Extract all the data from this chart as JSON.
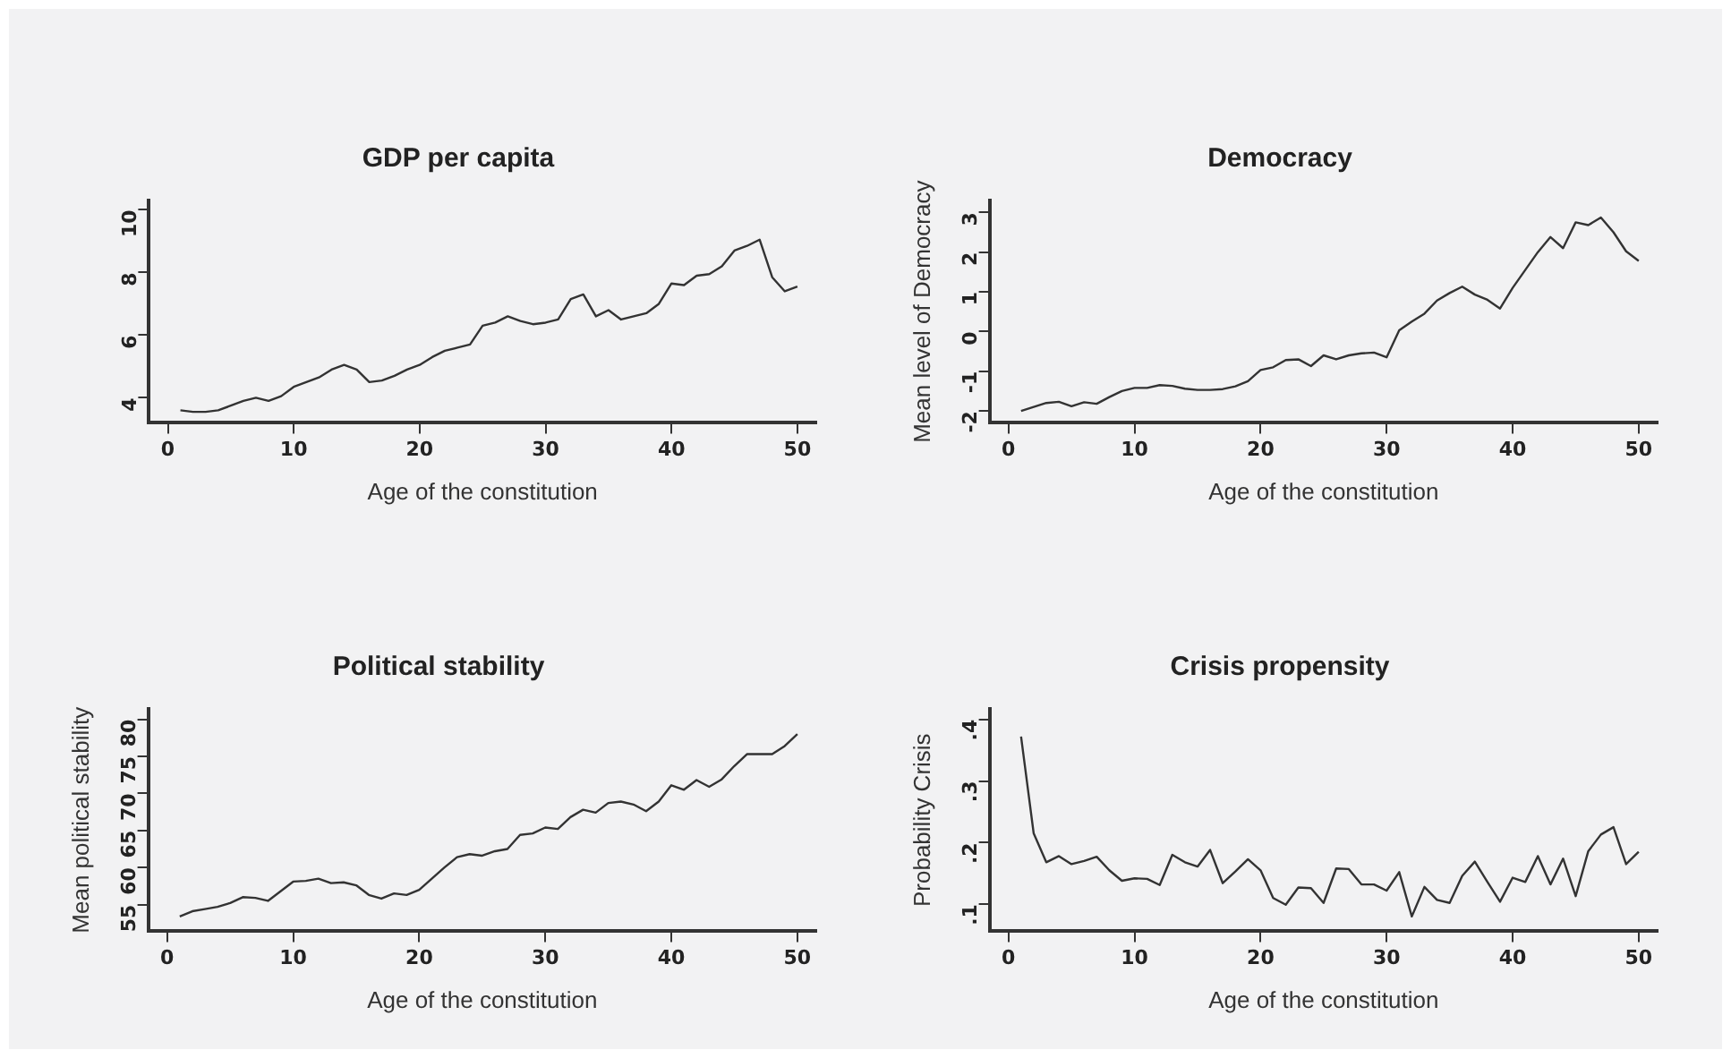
{
  "chart_data": [
    {
      "type": "line",
      "title": "GDP per capita",
      "xlabel": "Age of the constitution",
      "x": [
        1,
        2,
        3,
        4,
        5,
        6,
        7,
        8,
        9,
        10,
        11,
        12,
        13,
        14,
        15,
        16,
        17,
        18,
        19,
        20,
        21,
        22,
        23,
        24,
        25,
        26,
        27,
        28,
        29,
        30,
        31,
        32,
        33,
        34,
        35,
        36,
        37,
        38,
        39,
        40,
        41,
        42,
        43,
        44,
        45,
        46,
        47,
        48,
        49,
        50
      ],
      "series": [
        {
          "color": "#333333",
          "values": [
            3.6,
            3.55,
            3.55,
            3.6,
            3.75,
            3.9,
            4.0,
            3.9,
            4.05,
            4.35,
            4.5,
            4.65,
            4.9,
            5.05,
            4.9,
            4.5,
            4.55,
            4.7,
            4.9,
            5.05,
            5.3,
            5.5,
            5.6,
            5.7,
            6.3,
            6.4,
            6.6,
            6.45,
            6.35,
            6.4,
            6.5,
            7.15,
            7.3,
            6.6,
            6.8,
            6.5,
            6.6,
            6.7,
            7.0,
            7.65,
            7.6,
            7.9,
            7.95,
            8.2,
            8.7,
            8.85,
            9.05,
            7.85,
            7.4,
            7.55
          ]
        }
      ],
      "xlim": [
        -1.5,
        51.5
      ],
      "xticks": [
        0,
        10,
        20,
        30,
        40,
        50
      ],
      "ylim": [
        3.2,
        10.3
      ],
      "yticks": [
        4,
        6,
        8,
        10
      ],
      "grid": false,
      "legend": false,
      "marker": "none",
      "line_style": "solid"
    },
    {
      "type": "line",
      "title": "Democracy",
      "xlabel": "Age of the constitution",
      "ylabel": "Mean level of Democracy",
      "x": [
        1,
        2,
        3,
        4,
        5,
        6,
        7,
        8,
        9,
        10,
        11,
        12,
        13,
        14,
        15,
        16,
        17,
        18,
        19,
        20,
        21,
        22,
        23,
        24,
        25,
        26,
        27,
        28,
        29,
        30,
        31,
        32,
        33,
        34,
        35,
        36,
        37,
        38,
        39,
        40,
        41,
        42,
        43,
        44,
        45,
        46,
        47,
        48,
        49,
        50
      ],
      "series": [
        {
          "color": "#333333",
          "values": [
            -2.0,
            -1.9,
            -1.8,
            -1.77,
            -1.88,
            -1.78,
            -1.82,
            -1.65,
            -1.5,
            -1.42,
            -1.42,
            -1.35,
            -1.37,
            -1.44,
            -1.47,
            -1.47,
            -1.45,
            -1.38,
            -1.25,
            -0.97,
            -0.9,
            -0.72,
            -0.7,
            -0.87,
            -0.6,
            -0.7,
            -0.6,
            -0.55,
            -0.53,
            -0.65,
            0.03,
            0.25,
            0.45,
            0.78,
            0.97,
            1.13,
            0.93,
            0.8,
            0.58,
            1.1,
            1.55,
            2.0,
            2.38,
            2.1,
            2.75,
            2.68,
            2.87,
            2.5,
            2.02,
            1.78
          ]
        }
      ],
      "xlim": [
        -1.5,
        51.5
      ],
      "xticks": [
        0,
        10,
        20,
        30,
        40,
        50
      ],
      "ylim": [
        -2.3,
        3.3
      ],
      "yticks": [
        -2,
        -1,
        0,
        1,
        2,
        3
      ],
      "grid": false,
      "legend": false,
      "marker": "none",
      "line_style": "solid"
    },
    {
      "type": "line",
      "title": "Political stability",
      "xlabel": "Age of the constitution",
      "ylabel": "Mean political stability",
      "x": [
        1,
        2,
        3,
        4,
        5,
        6,
        7,
        8,
        9,
        10,
        11,
        12,
        13,
        14,
        15,
        16,
        17,
        18,
        19,
        20,
        21,
        22,
        23,
        24,
        25,
        26,
        27,
        28,
        29,
        30,
        31,
        32,
        33,
        34,
        35,
        36,
        37,
        38,
        39,
        40,
        41,
        42,
        43,
        44,
        45,
        46,
        47,
        48,
        49,
        50
      ],
      "series": [
        {
          "color": "#333333",
          "values": [
            53.4,
            54.1,
            54.4,
            54.7,
            55.2,
            56.0,
            55.9,
            55.5,
            56.8,
            58.1,
            58.2,
            58.5,
            57.9,
            58.0,
            57.6,
            56.3,
            55.8,
            56.5,
            56.3,
            57.0,
            58.5,
            60.0,
            61.4,
            61.8,
            61.6,
            62.2,
            62.5,
            64.4,
            64.6,
            65.4,
            65.2,
            66.8,
            67.8,
            67.4,
            68.7,
            68.9,
            68.5,
            67.6,
            68.9,
            71.1,
            70.5,
            71.8,
            70.9,
            71.9,
            73.7,
            75.3,
            75.3,
            75.3,
            76.4,
            78.0
          ]
        }
      ],
      "xlim": [
        -1.5,
        51.5
      ],
      "xticks": [
        0,
        10,
        20,
        30,
        40,
        50
      ],
      "ylim": [
        51.4,
        81.4
      ],
      "yticks": [
        55,
        60,
        65,
        70,
        75,
        80
      ],
      "grid": false,
      "legend": false,
      "marker": "none",
      "line_style": "solid"
    },
    {
      "type": "line",
      "title": "Crisis propensity",
      "xlabel": "Age of the constitution",
      "ylabel": "Probability Crisis",
      "x": [
        1,
        2,
        3,
        4,
        5,
        6,
        7,
        8,
        9,
        10,
        11,
        12,
        13,
        14,
        15,
        16,
        17,
        18,
        19,
        20,
        21,
        22,
        23,
        24,
        25,
        26,
        27,
        28,
        29,
        30,
        31,
        32,
        33,
        34,
        35,
        36,
        37,
        38,
        39,
        40,
        41,
        42,
        43,
        44,
        45,
        46,
        47,
        48,
        49,
        50
      ],
      "series": [
        {
          "color": "#333333",
          "values": [
            0.372,
            0.215,
            0.168,
            0.178,
            0.165,
            0.17,
            0.177,
            0.155,
            0.138,
            0.142,
            0.141,
            0.131,
            0.18,
            0.168,
            0.161,
            0.188,
            0.134,
            0.153,
            0.173,
            0.155,
            0.11,
            0.099,
            0.127,
            0.126,
            0.102,
            0.158,
            0.157,
            0.132,
            0.132,
            0.122,
            0.152,
            0.08,
            0.128,
            0.107,
            0.102,
            0.146,
            0.169,
            0.136,
            0.104,
            0.143,
            0.136,
            0.178,
            0.132,
            0.174,
            0.113,
            0.186,
            0.213,
            0.225,
            0.165,
            0.185
          ]
        }
      ],
      "xlim": [
        -1.5,
        51.5
      ],
      "xticks": [
        0,
        10,
        20,
        30,
        40,
        50
      ],
      "ylim": [
        0.056,
        0.417
      ],
      "yticks": [
        {
          "value": 0.1,
          "label": ".1"
        },
        {
          "value": 0.2,
          "label": ".2"
        },
        {
          "value": 0.3,
          "label": ".3"
        },
        {
          "value": 0.4,
          "label": ".4"
        }
      ],
      "grid": false,
      "legend": false,
      "marker": "none",
      "line_style": "solid"
    }
  ]
}
